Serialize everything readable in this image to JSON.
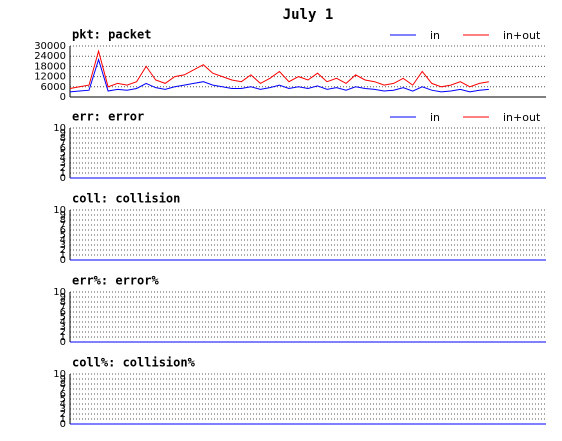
{
  "title": "July 1",
  "chart_data": [
    {
      "type": "line",
      "title": "pkt: packet",
      "x": [
        0,
        1,
        2,
        3,
        4,
        5,
        6,
        7,
        8,
        9,
        10,
        11,
        12,
        13,
        14,
        15,
        16,
        17,
        18,
        19,
        20,
        21,
        22,
        23,
        24,
        25,
        26,
        27,
        28,
        29,
        30,
        31,
        32,
        33,
        34,
        35,
        36,
        37,
        38,
        39,
        40,
        41,
        42,
        43,
        44
      ],
      "xlim": [
        0,
        50
      ],
      "ylim": [
        0,
        30000
      ],
      "yticks": [
        0,
        6000,
        12000,
        18000,
        24000,
        30000
      ],
      "grid": true,
      "series": [
        {
          "name": "in",
          "color": "#0000ff",
          "values": [
            3000,
            3500,
            4000,
            22000,
            3500,
            4500,
            4000,
            5000,
            8000,
            5500,
            4500,
            6000,
            7000,
            8000,
            9000,
            7000,
            6000,
            5000,
            5000,
            6000,
            4500,
            5500,
            7000,
            5000,
            6000,
            5000,
            6500,
            4500,
            5500,
            4000,
            6000,
            5000,
            4500,
            3500,
            4000,
            5500,
            3500,
            6000,
            4000,
            3000,
            3500,
            4500,
            3000,
            4000,
            4500
          ]
        },
        {
          "name": "in+out",
          "color": "#ff0000",
          "values": [
            5000,
            6000,
            7000,
            27000,
            6000,
            8000,
            7000,
            9000,
            18000,
            10000,
            8000,
            12000,
            13000,
            16000,
            19000,
            14000,
            12000,
            10000,
            9000,
            13000,
            8000,
            11000,
            15000,
            9000,
            12000,
            10000,
            14000,
            9000,
            11000,
            8000,
            13000,
            10000,
            9000,
            7000,
            8000,
            11000,
            7000,
            15000,
            8000,
            6000,
            7000,
            9000,
            6000,
            8000,
            9000
          ]
        }
      ]
    },
    {
      "type": "line",
      "title": "err: error",
      "x": [
        0,
        50
      ],
      "xlim": [
        0,
        50
      ],
      "ylim": [
        0,
        10
      ],
      "yticks": [
        0,
        1,
        2,
        3,
        4,
        5,
        6,
        7,
        8,
        9,
        10
      ],
      "grid": true,
      "series": [
        {
          "name": "in",
          "color": "#0000ff",
          "values": [
            0,
            0
          ]
        },
        {
          "name": "in+out",
          "color": "#ff0000",
          "values": [
            0,
            0
          ]
        }
      ]
    },
    {
      "type": "line",
      "title": "coll: collision",
      "x": [
        0,
        50
      ],
      "xlim": [
        0,
        50
      ],
      "ylim": [
        0,
        10
      ],
      "yticks": [
        0,
        1,
        2,
        3,
        4,
        5,
        6,
        7,
        8,
        9,
        10
      ],
      "grid": true,
      "series": [
        {
          "color": "#0000ff",
          "values": [
            0,
            0
          ]
        }
      ]
    },
    {
      "type": "line",
      "title": "err%: error%",
      "x": [
        0,
        50
      ],
      "xlim": [
        0,
        50
      ],
      "ylim": [
        0,
        10
      ],
      "yticks": [
        0,
        1,
        2,
        3,
        4,
        5,
        6,
        7,
        8,
        9,
        10
      ],
      "grid": true,
      "series": [
        {
          "color": "#0000ff",
          "values": [
            0,
            0
          ]
        }
      ]
    },
    {
      "type": "line",
      "title": "coll%: collision%",
      "x": [
        0,
        50
      ],
      "xlim": [
        0,
        50
      ],
      "ylim": [
        0,
        10
      ],
      "yticks": [
        0,
        1,
        2,
        3,
        4,
        5,
        6,
        7,
        8,
        9,
        10
      ],
      "grid": true,
      "series": [
        {
          "color": "#0000ff",
          "values": [
            0,
            0
          ]
        }
      ]
    }
  ]
}
